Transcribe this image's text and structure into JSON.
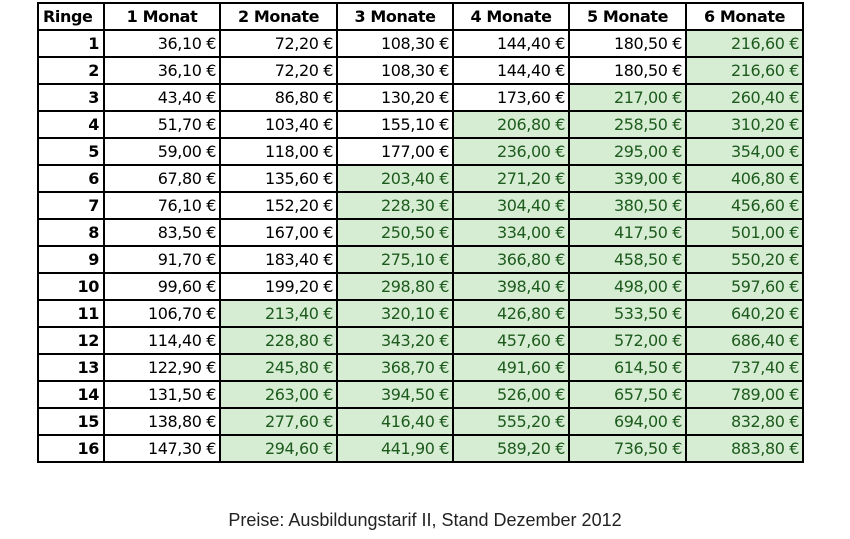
{
  "table": {
    "headers": [
      "Ringe",
      "1 Monat",
      "2 Monate",
      "3 Monate",
      "4 Monate",
      "5 Monate",
      "6 Monate"
    ],
    "highlight_color": "#d6edd3",
    "highlight_text_color": "#1d5a1d",
    "rows": [
      {
        "ring": "1",
        "prices": [
          "36,10 €",
          "72,20 €",
          "108,30 €",
          "144,40 €",
          "180,50 €",
          "216,60 €"
        ],
        "highlight_from": 5
      },
      {
        "ring": "2",
        "prices": [
          "36,10 €",
          "72,20 €",
          "108,30 €",
          "144,40 €",
          "180,50 €",
          "216,60 €"
        ],
        "highlight_from": 5
      },
      {
        "ring": "3",
        "prices": [
          "43,40 €",
          "86,80 €",
          "130,20 €",
          "173,60 €",
          "217,00 €",
          "260,40 €"
        ],
        "highlight_from": 4
      },
      {
        "ring": "4",
        "prices": [
          "51,70 €",
          "103,40 €",
          "155,10 €",
          "206,80 €",
          "258,50 €",
          "310,20 €"
        ],
        "highlight_from": 3
      },
      {
        "ring": "5",
        "prices": [
          "59,00 €",
          "118,00 €",
          "177,00 €",
          "236,00 €",
          "295,00 €",
          "354,00 €"
        ],
        "highlight_from": 3
      },
      {
        "ring": "6",
        "prices": [
          "67,80 €",
          "135,60 €",
          "203,40 €",
          "271,20 €",
          "339,00 €",
          "406,80 €"
        ],
        "highlight_from": 2
      },
      {
        "ring": "7",
        "prices": [
          "76,10 €",
          "152,20 €",
          "228,30 €",
          "304,40 €",
          "380,50 €",
          "456,60 €"
        ],
        "highlight_from": 2
      },
      {
        "ring": "8",
        "prices": [
          "83,50 €",
          "167,00 €",
          "250,50 €",
          "334,00 €",
          "417,50 €",
          "501,00 €"
        ],
        "highlight_from": 2
      },
      {
        "ring": "9",
        "prices": [
          "91,70 €",
          "183,40 €",
          "275,10 €",
          "366,80 €",
          "458,50 €",
          "550,20 €"
        ],
        "highlight_from": 2
      },
      {
        "ring": "10",
        "prices": [
          "99,60 €",
          "199,20 €",
          "298,80 €",
          "398,40 €",
          "498,00 €",
          "597,60 €"
        ],
        "highlight_from": 2
      },
      {
        "ring": "11",
        "prices": [
          "106,70 €",
          "213,40 €",
          "320,10 €",
          "426,80 €",
          "533,50 €",
          "640,20 €"
        ],
        "highlight_from": 1
      },
      {
        "ring": "12",
        "prices": [
          "114,40 €",
          "228,80 €",
          "343,20 €",
          "457,60 €",
          "572,00 €",
          "686,40 €"
        ],
        "highlight_from": 1
      },
      {
        "ring": "13",
        "prices": [
          "122,90 €",
          "245,80 €",
          "368,70 €",
          "491,60 €",
          "614,50 €",
          "737,40 €"
        ],
        "highlight_from": 1
      },
      {
        "ring": "14",
        "prices": [
          "131,50 €",
          "263,00 €",
          "394,50 €",
          "526,00 €",
          "657,50 €",
          "789,00 €"
        ],
        "highlight_from": 1
      },
      {
        "ring": "15",
        "prices": [
          "138,80 €",
          "277,60 €",
          "416,40 €",
          "555,20 €",
          "694,00 €",
          "832,80 €"
        ],
        "highlight_from": 1
      },
      {
        "ring": "16",
        "prices": [
          "147,30 €",
          "294,60 €",
          "441,90 €",
          "589,20 €",
          "736,50 €",
          "883,80 €"
        ],
        "highlight_from": 1
      }
    ]
  },
  "caption": "Preise: Ausbildungstarif II, Stand Dezember 2012"
}
